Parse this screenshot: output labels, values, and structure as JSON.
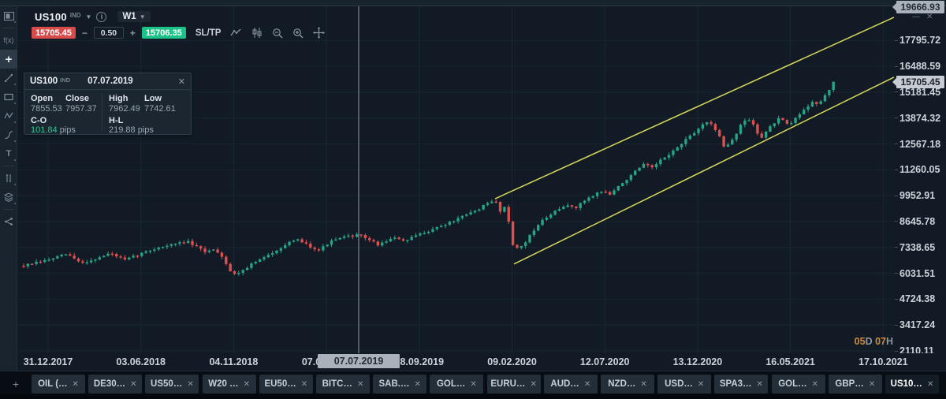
{
  "window": {
    "minimize_icon": "minimize",
    "close_icon": "close"
  },
  "toolbar": {
    "symbol": "US100",
    "symbol_badge": "IND",
    "timeframe": "W1",
    "sell_price": "15705.45",
    "spread": "0.50",
    "buy_price": "15706.35",
    "minus": "−",
    "plus": "+",
    "sltp_label": "SL/TP",
    "icons": [
      "line-chart-icon",
      "candlestick-type-icon",
      "zoom-out-icon",
      "zoom-in-icon",
      "move-chart-icon"
    ]
  },
  "sidebar": {
    "tools": [
      {
        "name": "chart-layout",
        "glyph": "layout"
      },
      {
        "name": "indicators",
        "glyph": "fx",
        "text": "f(x)"
      },
      {
        "name": "crosshair-tool",
        "glyph": "plus",
        "text": "+",
        "active": true
      },
      {
        "name": "trendline-tool",
        "glyph": "trendline"
      },
      {
        "name": "rectangle-tool",
        "glyph": "rect"
      },
      {
        "name": "zigzag-tool",
        "glyph": "zigzag"
      },
      {
        "name": "fibonacci-tool",
        "glyph": "fib"
      },
      {
        "name": "text-tool",
        "glyph": "text",
        "text": "T"
      },
      {
        "name": "measure-tool",
        "glyph": "measure"
      },
      {
        "name": "layers-tool",
        "glyph": "layers"
      },
      {
        "name": "share-tool",
        "glyph": "share"
      }
    ]
  },
  "tooltip": {
    "symbol": "US100",
    "badge": "IND",
    "date": "07.07.2019",
    "open_label": "Open",
    "open": "7855.53",
    "close_label": "Close",
    "close": "7957.37",
    "high_label": "High",
    "high": "7962.49",
    "low_label": "Low",
    "low": "7742.61",
    "co_label": "C-O",
    "co_value": "101.84",
    "co_unit": "pips",
    "hl_label": "H-L",
    "hl_value": "219.88 pips"
  },
  "countdown": {
    "days": "05",
    "days_unit": "D",
    "hours": "07",
    "hours_unit": "H"
  },
  "chart_data": {
    "type": "candlestick",
    "symbol": "US100",
    "timeframe": "W1",
    "colors": {
      "up": "#27a386",
      "down": "#dd5050",
      "channel": "#d4d85a",
      "crosshair": "#9fa8b2"
    },
    "y_ticks": [
      {
        "label": "17795.72",
        "value": 17795.72
      },
      {
        "label": "16488.59",
        "value": 16488.59
      },
      {
        "label": "15181.45",
        "value": 15181.45
      },
      {
        "label": "13874.32",
        "value": 13874.32
      },
      {
        "label": "12567.18",
        "value": 12567.18
      },
      {
        "label": "11260.05",
        "value": 11260.05
      },
      {
        "label": "9952.91",
        "value": 9952.91
      },
      {
        "label": "8645.78",
        "value": 8645.78
      },
      {
        "label": "7338.65",
        "value": 7338.65
      },
      {
        "label": "6031.51",
        "value": 6031.51
      },
      {
        "label": "4724.38",
        "value": 4724.38
      },
      {
        "label": "3417.24",
        "value": 3417.24
      },
      {
        "label": "2110.11",
        "value": 2110.11
      }
    ],
    "x_ticks": [
      "31.12.2017",
      "03.06.2018",
      "04.11.2018",
      "07.04.2019",
      "08.09.2019",
      "09.02.2020",
      "12.07.2020",
      "13.12.2020",
      "16.05.2021",
      "17.10.2021"
    ],
    "current_price": {
      "label": "15705.45",
      "value": 15705.45
    },
    "top_price_label": {
      "label": "19666.93",
      "value": 19666.93
    },
    "crosshair": {
      "x": 455,
      "date_label": "07.07.2019"
    },
    "channel": {
      "upper": {
        "from": [
          628,
          9800
        ],
        "to": [
          1134,
          18970
        ]
      },
      "lower": {
        "from": [
          652,
          6500
        ],
        "to": [
          1134,
          15940
        ]
      }
    },
    "price_path": [
      [
        30,
        6414
      ],
      [
        60,
        6693
      ],
      [
        85,
        7012
      ],
      [
        103,
        6534
      ],
      [
        125,
        6813
      ],
      [
        140,
        7052
      ],
      [
        158,
        6693
      ],
      [
        178,
        7012
      ],
      [
        200,
        7331
      ],
      [
        220,
        7490
      ],
      [
        237,
        7649
      ],
      [
        250,
        7331
      ],
      [
        262,
        7092
      ],
      [
        272,
        7291
      ],
      [
        283,
        6813
      ],
      [
        295,
        5936
      ],
      [
        307,
        6175
      ],
      [
        322,
        6573
      ],
      [
        337,
        6852
      ],
      [
        352,
        7251
      ],
      [
        367,
        7570
      ],
      [
        380,
        7729
      ],
      [
        394,
        7370
      ],
      [
        405,
        7211
      ],
      [
        418,
        7609
      ],
      [
        432,
        7809
      ],
      [
        445,
        7928
      ],
      [
        455,
        7957
      ],
      [
        463,
        7848
      ],
      [
        472,
        7649
      ],
      [
        480,
        7450
      ],
      [
        492,
        7729
      ],
      [
        503,
        7809
      ],
      [
        515,
        7649
      ],
      [
        527,
        7928
      ],
      [
        540,
        8127
      ],
      [
        553,
        8326
      ],
      [
        566,
        8526
      ],
      [
        580,
        8765
      ],
      [
        593,
        9004
      ],
      [
        605,
        9243
      ],
      [
        617,
        9522
      ],
      [
        628,
        9721
      ],
      [
        635,
        9163
      ],
      [
        641,
        9402
      ],
      [
        647,
        8366
      ],
      [
        653,
        6950
      ],
      [
        658,
        7490
      ],
      [
        664,
        7370
      ],
      [
        671,
        7928
      ],
      [
        679,
        8326
      ],
      [
        687,
        8645
      ],
      [
        696,
        8924
      ],
      [
        705,
        9163
      ],
      [
        714,
        9362
      ],
      [
        723,
        9522
      ],
      [
        730,
        9283
      ],
      [
        739,
        9642
      ],
      [
        748,
        9881
      ],
      [
        757,
        10080
      ],
      [
        766,
        10200
      ],
      [
        774,
        10001
      ],
      [
        783,
        10359
      ],
      [
        792,
        10678
      ],
      [
        801,
        10997
      ],
      [
        810,
        11316
      ],
      [
        818,
        11555
      ],
      [
        826,
        11316
      ],
      [
        833,
        11555
      ],
      [
        840,
        11794
      ],
      [
        848,
        12033
      ],
      [
        856,
        12272
      ],
      [
        863,
        12511
      ],
      [
        870,
        12790
      ],
      [
        877,
        12989
      ],
      [
        884,
        13228
      ],
      [
        891,
        13587
      ],
      [
        898,
        13706
      ],
      [
        905,
        13388
      ],
      [
        912,
        13069
      ],
      [
        919,
        12391
      ],
      [
        926,
        12670
      ],
      [
        933,
        12989
      ],
      [
        940,
        13547
      ],
      [
        947,
        13826
      ],
      [
        953,
        13746
      ],
      [
        959,
        13228
      ],
      [
        965,
        12870
      ],
      [
        971,
        13149
      ],
      [
        977,
        13428
      ],
      [
        983,
        13667
      ],
      [
        989,
        13866
      ],
      [
        995,
        13667
      ],
      [
        1001,
        13468
      ],
      [
        1007,
        13786
      ],
      [
        1013,
        14025
      ],
      [
        1019,
        14264
      ],
      [
        1025,
        14504
      ],
      [
        1031,
        14743
      ],
      [
        1037,
        14543
      ],
      [
        1043,
        14783
      ],
      [
        1049,
        15141
      ],
      [
        1053,
        15380
      ],
      [
        1057,
        15705
      ]
    ]
  },
  "tabs": [
    {
      "label": "OIL (…"
    },
    {
      "label": "DE30…"
    },
    {
      "label": "US50…"
    },
    {
      "label": "W20 …"
    },
    {
      "label": "EU50…"
    },
    {
      "label": "BITC…"
    },
    {
      "label": "SAB.…"
    },
    {
      "label": "GOL…"
    },
    {
      "label": "EURU…"
    },
    {
      "label": "AUD…"
    },
    {
      "label": "NZD…"
    },
    {
      "label": "USD…"
    },
    {
      "label": "SPA3…"
    },
    {
      "label": "GOL…"
    },
    {
      "label": "GBP…"
    },
    {
      "label": "US10…",
      "active": true
    }
  ],
  "tab_add": "+"
}
